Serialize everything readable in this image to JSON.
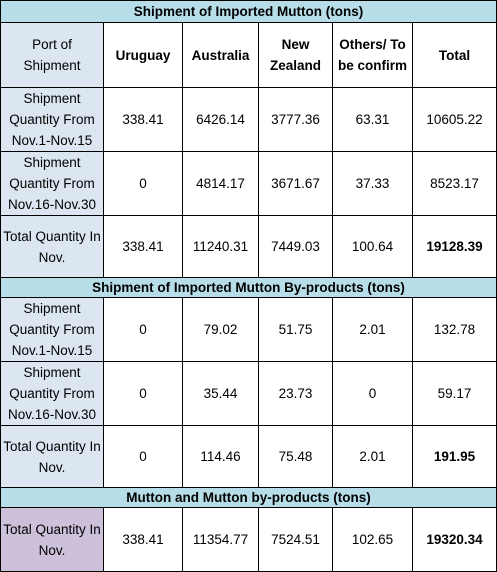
{
  "headers": {
    "port": "Port of Shipment",
    "uruguay": "Uruguay",
    "australia": "Australia",
    "new_zealand": "New Zealand",
    "others": "Others/ To be confirm",
    "total": "Total"
  },
  "sections": [
    {
      "title": "Shipment of Imported Mutton (tons)",
      "rows": [
        {
          "label": "Shipment Quantity From Nov.1-Nov.15",
          "uruguay": "338.41",
          "australia": "6426.14",
          "new_zealand": "3777.36",
          "others": "63.31",
          "total": "10605.22"
        },
        {
          "label": "Shipment Quantity From Nov.16-Nov.30",
          "uruguay": "0",
          "australia": "4814.17",
          "new_zealand": "3671.67",
          "others": "37.33",
          "total": "8523.17"
        },
        {
          "label": "Total Quantity In Nov.",
          "uruguay": "338.41",
          "australia": "11240.31",
          "new_zealand": "7449.03",
          "others": "100.64",
          "total": "19128.39"
        }
      ]
    },
    {
      "title": "Shipment of Imported Mutton By-products (tons)",
      "rows": [
        {
          "label": "Shipment Quantity From Nov.1-Nov.15",
          "uruguay": "0",
          "australia": "79.02",
          "new_zealand": "51.75",
          "others": "2.01",
          "total": "132.78"
        },
        {
          "label": "Shipment Quantity From Nov.16-Nov.30",
          "uruguay": "0",
          "australia": "35.44",
          "new_zealand": "23.73",
          "others": "0",
          "total": "59.17"
        },
        {
          "label": "Total Quantity In Nov.",
          "uruguay": "0",
          "australia": "114.46",
          "new_zealand": "75.48",
          "others": "2.01",
          "total": "191.95"
        }
      ]
    },
    {
      "title": "Mutton and Mutton by-products (tons)",
      "rows": [
        {
          "label": "Total Quantity In Nov.",
          "uruguay": "338.41",
          "australia": "11354.77",
          "new_zealand": "7524.51",
          "others": "102.65",
          "total": "19320.34"
        }
      ]
    }
  ],
  "colors": {
    "section_header": "#b7dee8",
    "label_cell": "#dce6f1",
    "label_cell_final": "#ccc0da"
  }
}
